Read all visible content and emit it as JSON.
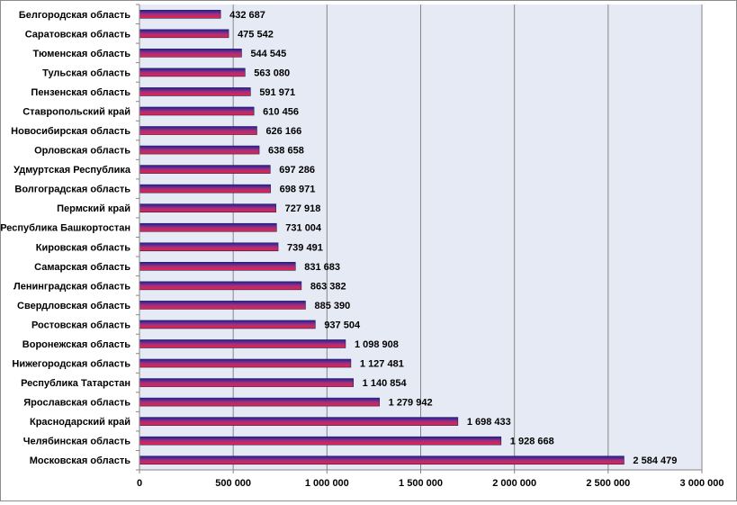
{
  "chart_data": {
    "type": "bar",
    "orientation": "horizontal",
    "title": "",
    "xlabel": "",
    "ylabel": "",
    "xlim": [
      0,
      3000000
    ],
    "grid": true,
    "legend": "none",
    "categories": [
      "Белгородская область",
      "Саратовская область",
      "Тюменская область",
      "Тульская область",
      "Пензенская область",
      "Ставропольский край",
      "Новосибирская область",
      "Орловская область",
      "Удмуртская Республика",
      "Волгоградская область",
      "Пермский край",
      "Республика Башкортостан",
      "Кировская область",
      "Самарская область",
      "Ленинградская область",
      "Свердловская область",
      "Ростовская область",
      "Воронежская область",
      "Нижегородская область",
      "Республика Татарстан",
      "Ярославская область",
      "Краснодарский край",
      "Челябинская область",
      "Московская область"
    ],
    "values": [
      432687,
      475542,
      544545,
      563080,
      591971,
      610456,
      626166,
      638658,
      697286,
      698971,
      727918,
      731004,
      739491,
      831683,
      863382,
      885390,
      937504,
      1098908,
      1127481,
      1140854,
      1279942,
      1698433,
      1928668,
      2584479
    ],
    "value_labels": [
      "432 687",
      "475 542",
      "544 545",
      "563 080",
      "591 971",
      "610 456",
      "626 166",
      "638 658",
      "697 286",
      "698 971",
      "727 918",
      "731 004",
      "739 491",
      "831 683",
      "863 382",
      "885 390",
      "937 504",
      "1 098 908",
      "1 127 481",
      "1 140 854",
      "1 279 942",
      "1 698 433",
      "1 928 668",
      "2 584 479"
    ],
    "x_ticks": [
      0,
      500000,
      1000000,
      1500000,
      2000000,
      2500000,
      3000000
    ],
    "x_tick_labels": [
      "0",
      "500 000",
      "1 000 000",
      "1 500 000",
      "2 000 000",
      "2 500 000",
      "3 000 000"
    ],
    "colors": {
      "plot_background": "#e6eaf5",
      "gridline": "#868686",
      "bar_top": "#20209a",
      "bar_mid": "#a0307e",
      "bar_bottom": "#ee2244",
      "bar_outline": "#1e1e5e"
    }
  }
}
